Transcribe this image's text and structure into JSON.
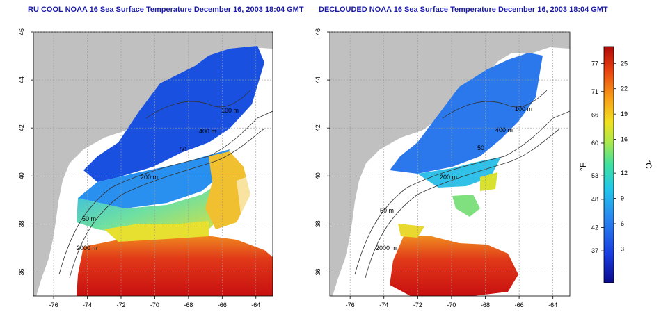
{
  "panels": [
    {
      "title": "RU COOL NOAA 16 Sea Surface Temperature December 16, 2003 18:04 GMT",
      "contour_labels": [
        "100 m",
        "400 m",
        "50",
        "200 m",
        "50 m",
        "2000 m"
      ]
    },
    {
      "title": "DECLOUDED NOAA 16 Sea Surface Temperature December 16, 2003 18:04 GMT",
      "contour_labels": [
        "100 m",
        "400 m",
        "50",
        "200 m",
        "50 m",
        "2000 m"
      ]
    }
  ],
  "axes": {
    "lat_ticks": [
      "46",
      "44",
      "42",
      "40",
      "38",
      "36"
    ],
    "lon_ticks": [
      "-76",
      "-74",
      "-72",
      "-70",
      "-68",
      "-66",
      "-64"
    ]
  },
  "colorbar": {
    "fahrenheit_label": "°F",
    "celsius_label": "°C",
    "fahrenheit_ticks": [
      "77",
      "71",
      "66",
      "60",
      "53",
      "48",
      "42",
      "37"
    ],
    "celsius_ticks": [
      "25",
      "22",
      "19",
      "16",
      "12",
      "9",
      "6",
      "3"
    ],
    "colors": [
      "#0a0a8c",
      "#1a3ce0",
      "#2a8af0",
      "#22c8e8",
      "#40e0a0",
      "#b0e848",
      "#f0e020",
      "#f8a018",
      "#e84010",
      "#b00808"
    ]
  }
}
